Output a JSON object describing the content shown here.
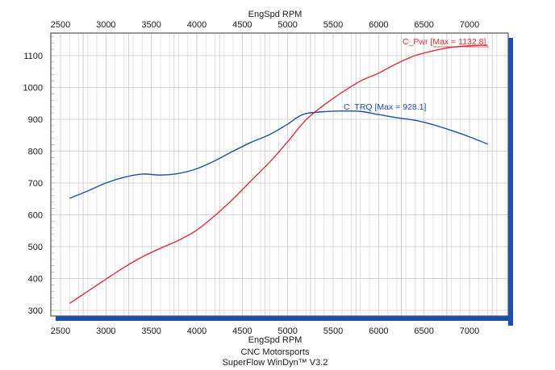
{
  "chart_data": {
    "type": "line",
    "title": "",
    "xlabel_top": "EngSpd RPM",
    "xlabel": "EngSpd RPM",
    "ylabel": "",
    "xlim": [
      2400,
      7450
    ],
    "ylim": [
      290,
      1180
    ],
    "x_ticks": [
      2500,
      3000,
      3500,
      4000,
      4500,
      5000,
      5500,
      6000,
      6500,
      7000
    ],
    "y_ticks": [
      300,
      400,
      500,
      600,
      700,
      800,
      900,
      1000,
      1100
    ],
    "grid": true,
    "series": [
      {
        "name": "C_Pwr",
        "label": "C_Pwr  [Max = 1132.8]",
        "max": 1132.8,
        "color": "#d9313a",
        "x": [
          2600,
          2800,
          3000,
          3200,
          3400,
          3600,
          3800,
          4000,
          4200,
          4400,
          4600,
          4800,
          5000,
          5200,
          5400,
          5600,
          5800,
          6000,
          6200,
          6400,
          6600,
          6800,
          7000,
          7200
        ],
        "values": [
          322,
          360,
          398,
          435,
          468,
          495,
          520,
          552,
          598,
          650,
          708,
          765,
          830,
          898,
          945,
          985,
          1020,
          1045,
          1075,
          1100,
          1115,
          1126,
          1131,
          1133
        ]
      },
      {
        "name": "C_TRQ",
        "label": "C_TRQ  [Max = 928.1]",
        "max": 928.1,
        "color": "#1f4fa8",
        "x": [
          2600,
          2800,
          3000,
          3200,
          3400,
          3600,
          3800,
          4000,
          4200,
          4400,
          4600,
          4800,
          5000,
          5100,
          5200,
          5400,
          5600,
          5800,
          6000,
          6200,
          6400,
          6600,
          6800,
          7000,
          7200
        ],
        "values": [
          652,
          675,
          700,
          718,
          728,
          725,
          730,
          745,
          770,
          800,
          828,
          852,
          885,
          905,
          918,
          924,
          926,
          925,
          915,
          905,
          897,
          883,
          865,
          845,
          822
        ]
      }
    ]
  },
  "footer": {
    "line1": "CNC Motorsports",
    "line2": "SuperFlow WinDyn™ V3.2"
  },
  "colors": {
    "frame_shadow": "#1a4fb0",
    "grid_major": "#c8c8c8",
    "grid_minor": "#e4e4e4",
    "frame": "#555555"
  }
}
